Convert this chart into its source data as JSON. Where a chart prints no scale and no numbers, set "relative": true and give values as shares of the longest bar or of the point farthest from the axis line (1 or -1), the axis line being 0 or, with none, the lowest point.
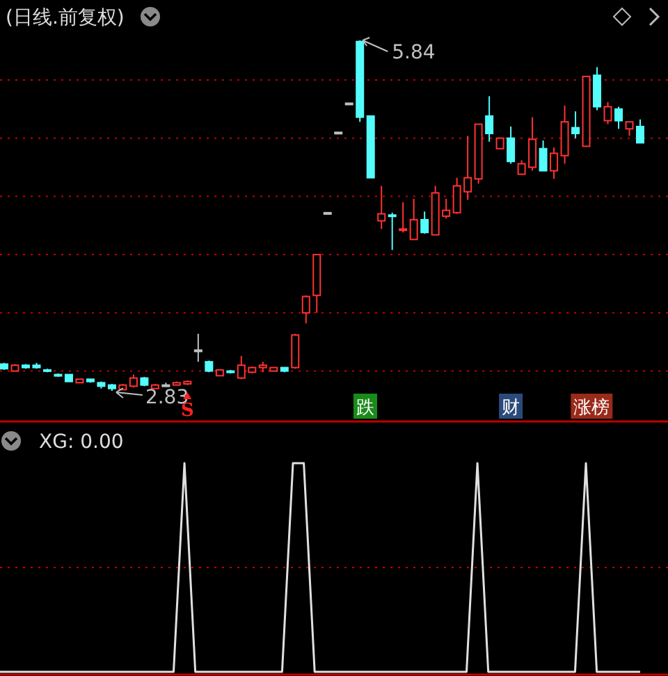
{
  "chart_data": [
    {
      "type": "candlestick",
      "title": "(日线.前复权)",
      "ref_lines": [
        {
          "axis": "y",
          "value": 5.5,
          "color": "#c00000",
          "line_style": "dotted"
        },
        {
          "axis": "y",
          "value": 5.0,
          "color": "#c00000",
          "line_style": "dotted"
        },
        {
          "axis": "y",
          "value": 4.5,
          "color": "#c00000",
          "line_style": "dotted"
        },
        {
          "axis": "y",
          "value": 4.0,
          "color": "#c00000",
          "line_style": "dotted"
        },
        {
          "axis": "y",
          "value": 3.5,
          "color": "#c00000",
          "line_style": "dotted"
        },
        {
          "axis": "y",
          "value": 3.0,
          "color": "#c00000",
          "line_style": "dotted"
        }
      ],
      "categories": [
        null,
        null,
        null,
        null,
        null,
        null,
        null,
        null,
        null,
        null,
        null,
        null,
        null,
        null,
        null,
        null,
        null,
        null,
        null,
        null,
        null,
        null,
        null,
        null,
        null,
        null,
        null,
        null,
        null,
        null,
        null,
        null,
        null,
        null,
        null,
        null,
        null,
        null,
        null,
        null,
        null,
        null,
        null,
        null,
        null,
        null,
        null,
        null,
        null,
        null,
        null,
        null,
        null,
        null,
        null,
        null,
        null,
        null,
        null,
        null
      ],
      "ohlc": [
        [
          3.06,
          3.07,
          3.01,
          3.02
        ],
        [
          3.0,
          3.06,
          3.0,
          3.05
        ],
        [
          3.05,
          3.06,
          3.02,
          3.03
        ],
        [
          3.05,
          3.07,
          3.02,
          3.03
        ],
        [
          3.01,
          3.02,
          2.99,
          3.0
        ],
        [
          2.97,
          2.98,
          2.95,
          2.96
        ],
        [
          2.97,
          2.97,
          2.91,
          2.91
        ],
        [
          2.9,
          2.93,
          2.9,
          2.93
        ],
        [
          2.93,
          2.93,
          2.9,
          2.91
        ],
        [
          2.9,
          2.91,
          2.85,
          2.87
        ],
        [
          2.88,
          2.89,
          2.83,
          2.85
        ],
        [
          2.84,
          2.89,
          2.84,
          2.88
        ],
        [
          2.87,
          2.97,
          2.86,
          2.94
        ],
        [
          2.94,
          2.95,
          2.87,
          2.88
        ],
        [
          2.85,
          2.89,
          2.85,
          2.88
        ],
        [
          2.88,
          2.9,
          2.87,
          2.88
        ],
        [
          2.88,
          2.91,
          2.88,
          2.9
        ],
        [
          2.89,
          2.92,
          2.88,
          2.91
        ],
        [
          3.18,
          3.32,
          3.08,
          3.18
        ],
        [
          3.08,
          3.09,
          2.99,
          3.0
        ],
        [
          2.96,
          3.01,
          2.96,
          3.01
        ],
        [
          3.0,
          3.01,
          2.98,
          2.99
        ],
        [
          2.94,
          3.13,
          2.93,
          3.05
        ],
        [
          2.99,
          3.04,
          2.98,
          3.03
        ],
        [
          3.03,
          3.08,
          2.99,
          3.05
        ],
        [
          3.0,
          3.03,
          3.0,
          3.03
        ],
        [
          3.03,
          3.03,
          2.99,
          3.0
        ],
        [
          3.03,
          3.32,
          3.02,
          3.31
        ],
        [
          3.5,
          3.65,
          3.41,
          3.64
        ],
        [
          3.65,
          4.0,
          3.5,
          4.0
        ],
        [
          4.36,
          4.36,
          4.36,
          4.36
        ],
        [
          5.05,
          5.05,
          5.05,
          5.05
        ],
        [
          5.3,
          5.3,
          5.3,
          5.3
        ],
        [
          5.83,
          5.84,
          5.14,
          5.18
        ],
        [
          5.19,
          5.19,
          4.66,
          4.66
        ],
        [
          4.29,
          4.59,
          4.22,
          4.35
        ],
        [
          4.34,
          4.36,
          4.04,
          4.33
        ],
        [
          4.21,
          4.45,
          4.19,
          4.22
        ],
        [
          4.13,
          4.48,
          4.13,
          4.3
        ],
        [
          4.3,
          4.37,
          4.18,
          4.19
        ],
        [
          4.17,
          4.59,
          4.17,
          4.53
        ],
        [
          4.33,
          4.48,
          4.31,
          4.38
        ],
        [
          4.36,
          4.66,
          4.35,
          4.59
        ],
        [
          4.54,
          5.02,
          4.47,
          4.66
        ],
        [
          4.65,
          5.12,
          4.61,
          5.12
        ],
        [
          5.19,
          5.36,
          4.97,
          5.04
        ],
        [
          4.91,
          5.0,
          4.91,
          5.0
        ],
        [
          5.0,
          5.1,
          4.78,
          4.8
        ],
        [
          4.69,
          4.81,
          4.69,
          4.78
        ],
        [
          4.75,
          5.18,
          4.72,
          4.99
        ],
        [
          4.91,
          4.98,
          4.72,
          4.72
        ],
        [
          4.72,
          4.92,
          4.65,
          4.87
        ],
        [
          4.85,
          5.28,
          4.78,
          5.14
        ],
        [
          5.09,
          5.23,
          5.0,
          5.04
        ],
        [
          4.93,
          5.53,
          4.93,
          5.53
        ],
        [
          5.54,
          5.61,
          5.24,
          5.27
        ],
        [
          5.15,
          5.31,
          5.12,
          5.27
        ],
        [
          5.25,
          5.27,
          5.08,
          5.15
        ],
        [
          5.08,
          5.14,
          5.02,
          5.14
        ],
        [
          5.1,
          5.16,
          4.96,
          4.96
        ]
      ],
      "colors": [
        "#54fcfc",
        "#ff3232",
        "#54fcfc",
        "#54fcfc",
        "#54fcfc",
        "#54fcfc",
        "#54fcfc",
        "#ff3232",
        "#54fcfc",
        "#54fcfc",
        "#54fcfc",
        "#ff3232",
        "#ff3232",
        "#54fcfc",
        "#ff3232",
        "#c0c0c0",
        "#ff3232",
        "#ff3232",
        "#c0c0c0",
        "#54fcfc",
        "#ff3232",
        "#54fcfc",
        "#ff3232",
        "#ff3232",
        "#ff3232",
        "#ff3232",
        "#54fcfc",
        "#ff3232",
        "#ff3232",
        "#ff3232",
        "#c0c0c0",
        "#c0c0c0",
        "#c0c0c0",
        "#54fcfc",
        "#54fcfc",
        "#ff3232",
        "#54fcfc",
        "#ff3232",
        "#ff3232",
        "#54fcfc",
        "#ff3232",
        "#ff3232",
        "#ff3232",
        "#ff3232",
        "#ff3232",
        "#54fcfc",
        "#ff3232",
        "#54fcfc",
        "#ff3232",
        "#ff3232",
        "#54fcfc",
        "#ff3232",
        "#ff3232",
        "#54fcfc",
        "#ff3232",
        "#54fcfc",
        "#ff3232",
        "#54fcfc",
        "#ff3232",
        "#54fcfc"
      ],
      "annotations": [
        "5.84",
        "2.83",
        "S",
        "跌",
        "财",
        "涨榜"
      ]
    },
    {
      "type": "line",
      "title": "XG: 0.00",
      "relative": true,
      "ref_lines": [
        {
          "axis": "y",
          "value": 0.5,
          "color": "#c00000",
          "line_style": "dotted"
        }
      ],
      "categories": [
        null,
        null,
        null,
        null,
        null,
        null,
        null,
        null,
        null,
        null,
        null,
        null,
        null,
        null,
        null,
        null,
        null,
        null,
        null,
        null,
        null,
        null,
        null,
        null,
        null,
        null,
        null,
        null,
        null,
        null,
        null,
        null,
        null,
        null,
        null,
        null,
        null,
        null,
        null,
        null,
        null,
        null,
        null,
        null,
        null,
        null,
        null,
        null,
        null,
        null,
        null,
        null,
        null,
        null,
        null,
        null,
        null,
        null,
        null,
        null
      ],
      "series": [
        {
          "color": "#e0e0e0",
          "values": [
            0,
            0,
            0,
            0,
            0,
            0,
            0,
            0,
            0,
            0,
            0,
            0,
            0,
            0,
            0,
            0,
            0,
            1,
            0,
            0,
            0,
            0,
            0,
            0,
            0,
            0,
            0,
            1,
            1,
            0,
            0,
            0,
            0,
            0,
            0,
            0,
            0,
            0,
            0,
            0,
            0,
            0,
            0,
            0,
            1,
            0,
            0,
            0,
            0,
            0,
            0,
            0,
            0,
            0,
            1,
            0,
            0,
            0,
            0,
            0
          ]
        }
      ]
    }
  ]
}
